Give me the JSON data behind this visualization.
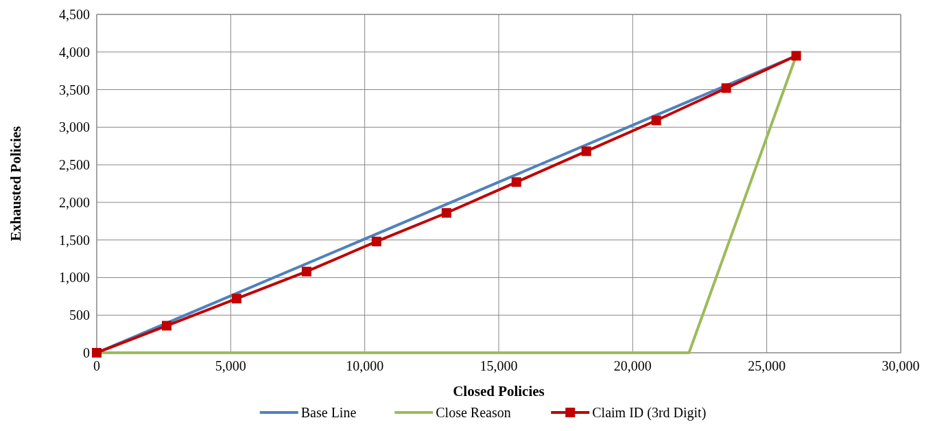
{
  "chart_data": {
    "type": "line",
    "xlabel": "Closed Policies",
    "ylabel": "Exhausted Policies",
    "xlim": [
      0,
      30000
    ],
    "xticks": [
      {
        "value": 0,
        "label": "0"
      },
      {
        "value": 5000,
        "label": "5,000"
      },
      {
        "value": 10000,
        "label": "10,000"
      },
      {
        "value": 15000,
        "label": "15,000"
      },
      {
        "value": 20000,
        "label": "20,000"
      },
      {
        "value": 25000,
        "label": "25,000"
      },
      {
        "value": 30000,
        "label": "30,000"
      }
    ],
    "ylim": [
      0,
      4500
    ],
    "yticks": [
      {
        "value": 0,
        "label": "0"
      },
      {
        "value": 500,
        "label": "500"
      },
      {
        "value": 1000,
        "label": "1,000"
      },
      {
        "value": 1500,
        "label": "1,500"
      },
      {
        "value": 2000,
        "label": "2,000"
      },
      {
        "value": 2500,
        "label": "2,500"
      },
      {
        "value": 3000,
        "label": "3,000"
      },
      {
        "value": 3500,
        "label": "3,500"
      },
      {
        "value": 4000,
        "label": "4,000"
      },
      {
        "value": 4500,
        "label": "4,500"
      }
    ],
    "grid": true,
    "legend": "bottom",
    "series": [
      {
        "name": "Base Line",
        "color": "#4f81bd",
        "marker": "none",
        "x": [
          0,
          26100
        ],
        "values": [
          0,
          3950
        ]
      },
      {
        "name": "Close Reason",
        "color": "#9bbb59",
        "marker": "none",
        "x": [
          0,
          22100,
          26100
        ],
        "values": [
          0,
          0,
          3950
        ]
      },
      {
        "name": "Claim ID (3rd Digit)",
        "color": "#c00000",
        "marker": "square",
        "x": [
          0,
          2610,
          5220,
          7830,
          10440,
          13050,
          15660,
          18270,
          20880,
          23490,
          26100
        ],
        "values": [
          0,
          360,
          720,
          1080,
          1480,
          1860,
          2270,
          2680,
          3090,
          3520,
          3950
        ]
      }
    ]
  }
}
